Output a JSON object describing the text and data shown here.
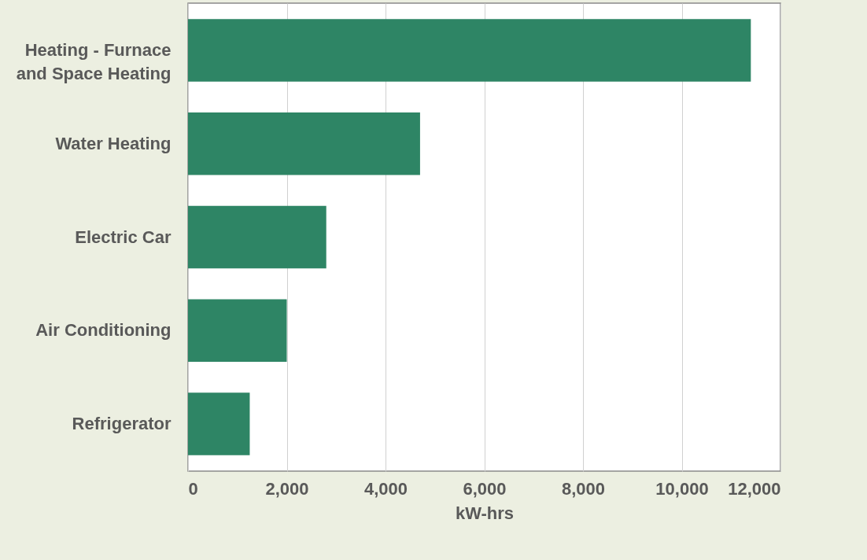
{
  "chart_data": {
    "type": "bar",
    "orientation": "horizontal",
    "xlabel": "kW-hrs",
    "categories": [
      "Heating - Furnace and Space Heating",
      "Water Heating",
      "Electric Car",
      "Air Conditioning",
      "Refrigerator"
    ],
    "values": [
      11400,
      4700,
      2800,
      2000,
      1250
    ],
    "color": "#2e8565",
    "xlim": [
      0,
      12000
    ],
    "xticks": [
      {
        "value": 0,
        "label": "0"
      },
      {
        "value": 2000,
        "label": "2,000"
      },
      {
        "value": 4000,
        "label": "4,000"
      },
      {
        "value": 6000,
        "label": "6,000"
      },
      {
        "value": 8000,
        "label": "8,000"
      },
      {
        "value": 10000,
        "label": "10,000"
      },
      {
        "value": 12000,
        "label": "12,000"
      }
    ],
    "grid": "x"
  }
}
